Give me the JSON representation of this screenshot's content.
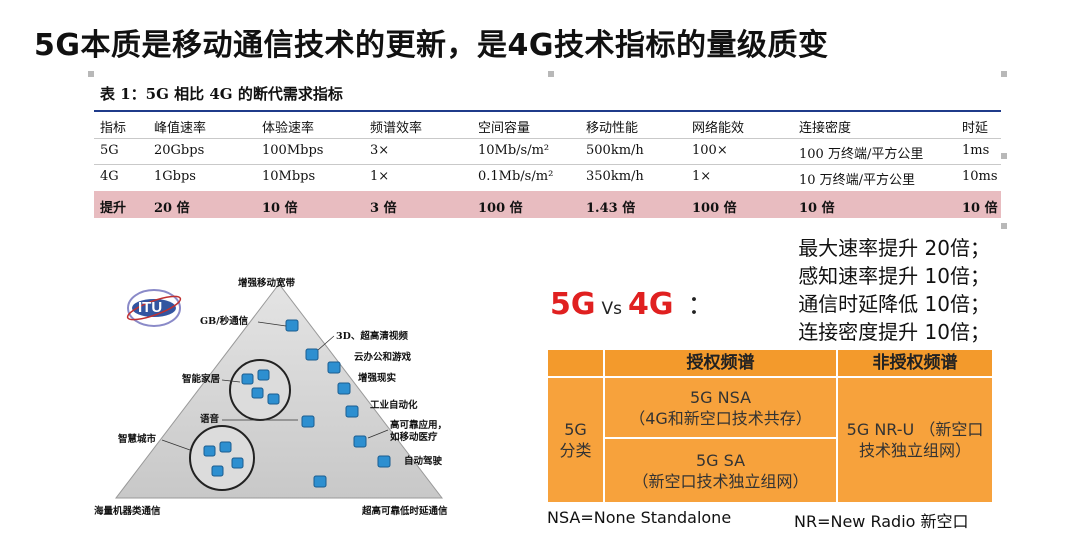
{
  "page": {
    "title": "5G本质是移动通信技术的更新，是4G技术指标的量级质变"
  },
  "demand_table": {
    "caption": "表 1：5G 相比 4G 的断代需求指标",
    "headers": [
      "指标",
      "峰值速率",
      "体验速率",
      "频谱效率",
      "空间容量",
      "移动性能",
      "网络能效",
      "连接密度",
      "时延"
    ],
    "rows": [
      [
        "5G",
        "20Gbps",
        "100Mbps",
        "3×",
        "10Mb/s/m²",
        "500km/h",
        "100×",
        "100 万终端/平方公里",
        "1ms"
      ],
      [
        "4G",
        "1Gbps",
        "10Mbps",
        "1×",
        "0.1Mb/s/m²",
        "350km/h",
        "1×",
        "10 万终端/平方公里",
        "10ms"
      ],
      [
        "提升",
        "20 倍",
        "10 倍",
        "3 倍",
        "100 倍",
        "1.43 倍",
        "100 倍",
        "10 倍",
        "10 倍"
      ]
    ]
  },
  "pyramid": {
    "logo": "ITU",
    "top": "增强移动宽带",
    "labels": {
      "gb": "GB/秒通信",
      "3d": "3D、超高清视频",
      "cloud": "云办公和游戏",
      "smart_home": "智能家居",
      "ar": "增强现实",
      "industry": "工业自动化",
      "voice": "语音",
      "reliable": "高可靠应用，",
      "reliable2": "如移动医疗",
      "smart_city": "智慧城市",
      "driving": "自动驾驶",
      "bottom_left": "海量机器类通信",
      "bottom_right": "超高可靠低时延通信"
    }
  },
  "comparison": {
    "a": "5G",
    "vs": "Vs",
    "b": "4G",
    "colon": "：",
    "improvements": [
      "最大速率提升  20倍；",
      "感知速率提升  10倍；",
      "通信时延降低  10倍；",
      "连接密度提升  10倍；"
    ]
  },
  "spectrum_table": {
    "head_licensed": "授权频谱",
    "head_unlicensed": "非授权频谱",
    "row_label": "5G 分类",
    "nsa": "5G NSA\n（4G和新空口技术共存）",
    "sa": "5G SA\n（新空口技术独立组网）",
    "nru": "5G NR-U\n（新空口技术独立组网）"
  },
  "footnotes": {
    "nsa": "NSA=None Standalone",
    "nr": "NR=New Radio 新空口"
  },
  "colors": {
    "accent_red": "#e02020",
    "orange": "#f39a2c",
    "highlight_row": "#e8bcc0",
    "table_rule": "#1f3b8a"
  }
}
